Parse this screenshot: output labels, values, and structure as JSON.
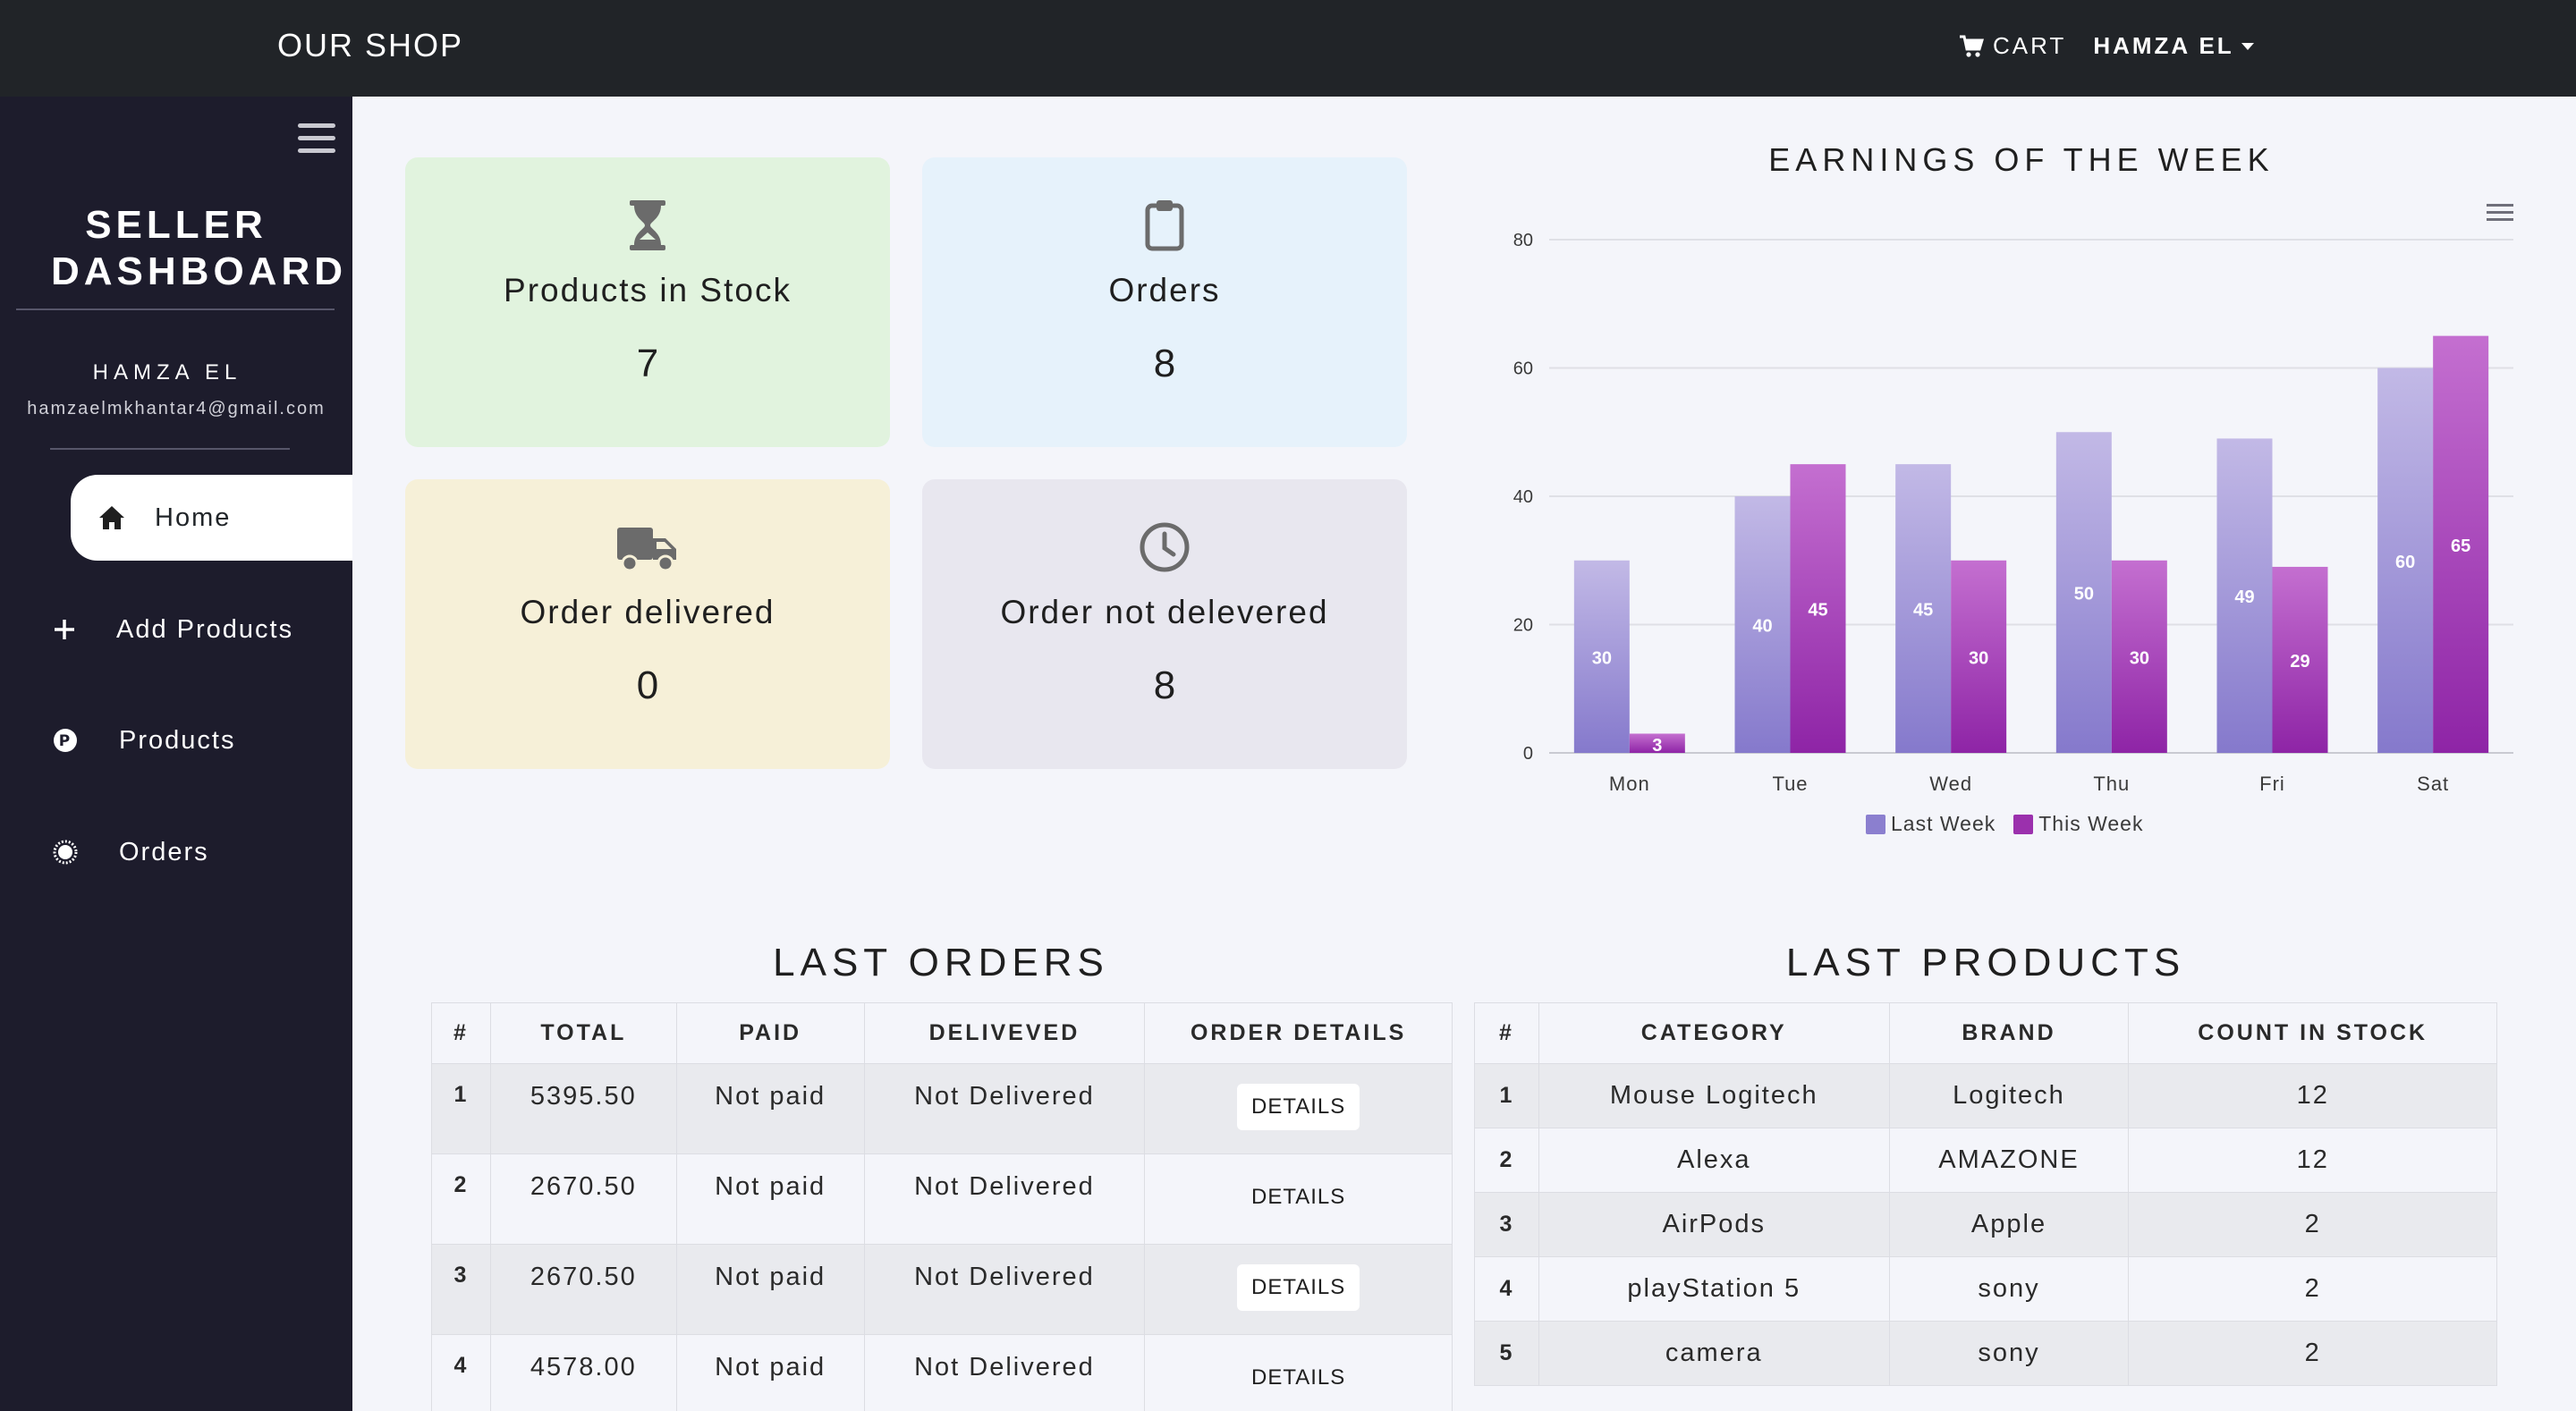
{
  "navbar": {
    "brand": "OUR SHOP",
    "cart_label": "CART",
    "user_label": "HAMZA EL"
  },
  "sidebar": {
    "title": "SELLER DASHBOARD",
    "user_name": "HAMZA EL",
    "user_email": "hamzaelmkhantar4@gmail.com",
    "items": [
      {
        "label": "Home",
        "icon": "home-icon",
        "active": true
      },
      {
        "label": "Add Products",
        "icon": "plus-icon"
      },
      {
        "label": "Products",
        "icon": "product-icon"
      },
      {
        "label": "Orders",
        "icon": "orders-icon"
      }
    ]
  },
  "cards": [
    {
      "label": "Products in Stock",
      "value": "7",
      "icon": "hourglass-icon",
      "color": "#e1f3de"
    },
    {
      "label": "Orders",
      "value": "8",
      "icon": "clipboard-icon",
      "color": "#e6f2fb"
    },
    {
      "label": "Order delivered",
      "value": "0",
      "icon": "truck-icon",
      "color": "#f6f0d8"
    },
    {
      "label": "Order not delevered",
      "value": "8",
      "icon": "clock-icon",
      "color": "#e8e7ef"
    }
  ],
  "chart_data": {
    "type": "bar",
    "title": "EARNINGS OF THE WEEK",
    "categories": [
      "Mon",
      "Tue",
      "Wed",
      "Thu",
      "Fri",
      "Sat"
    ],
    "series": [
      {
        "name": "Last Week",
        "values": [
          30,
          40,
          45,
          50,
          49,
          60
        ],
        "color": "#8b7fcf"
      },
      {
        "name": "This Week",
        "values": [
          3,
          45,
          30,
          30,
          29,
          65
        ],
        "color": "#9b30ad"
      }
    ],
    "yticks": [
      0,
      20,
      40,
      60,
      80
    ],
    "ylim": [
      0,
      80
    ],
    "grid": true,
    "legend": "bottom"
  },
  "orders": {
    "title": "LAST ORDERS",
    "columns": [
      "#",
      "TOTAL",
      "PAID",
      "DELIVEVED",
      "ORDER DETAILS"
    ],
    "button_label": "DETAILS",
    "rows": [
      {
        "idx": "1",
        "total": "5395.50",
        "paid": "Not paid",
        "delivered": "Not Delivered"
      },
      {
        "idx": "2",
        "total": "2670.50",
        "paid": "Not paid",
        "delivered": "Not Delivered"
      },
      {
        "idx": "3",
        "total": "2670.50",
        "paid": "Not paid",
        "delivered": "Not Delivered"
      },
      {
        "idx": "4",
        "total": "4578.00",
        "paid": "Not paid",
        "delivered": "Not Delivered"
      }
    ]
  },
  "products": {
    "title": "LAST PRODUCTS",
    "columns": [
      "#",
      "CATEGORY",
      "BRAND",
      "COUNT IN STOCK"
    ],
    "rows": [
      {
        "idx": "1",
        "category": "Mouse Logitech",
        "brand": "Logitech",
        "count": "12"
      },
      {
        "idx": "2",
        "category": "Alexa",
        "brand": "AMAZONE",
        "count": "12"
      },
      {
        "idx": "3",
        "category": "AirPods",
        "brand": "Apple",
        "count": "2"
      },
      {
        "idx": "4",
        "category": "playStation 5",
        "brand": "sony",
        "count": "2"
      },
      {
        "idx": "5",
        "category": "camera",
        "brand": "sony",
        "count": "2"
      }
    ]
  }
}
